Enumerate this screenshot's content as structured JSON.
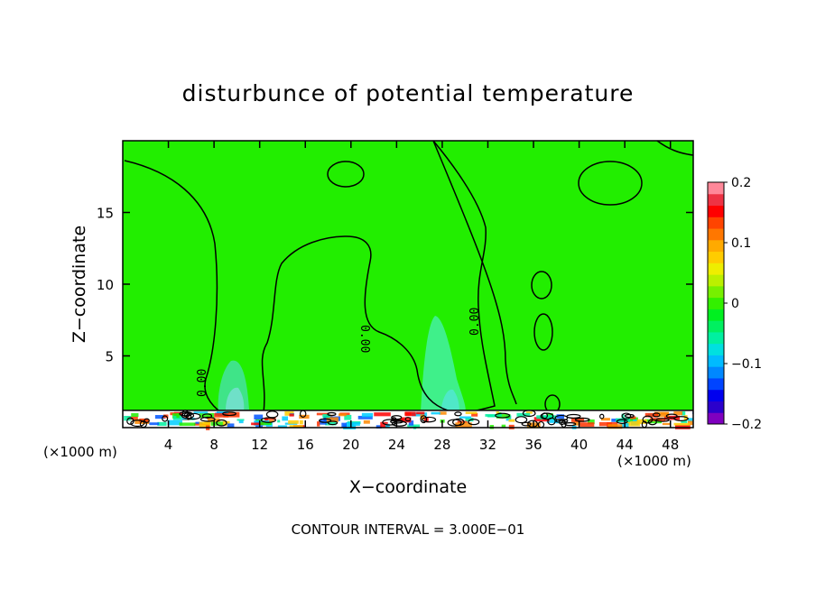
{
  "chart_data": {
    "type": "contour",
    "title": "disturbunce of potential temperature",
    "xlabel": "X−coordinate",
    "ylabel": "Z−coordinate",
    "x_unit_left": "(×1000 m)",
    "x_unit_right": "(×1000 m)",
    "footer": "CONTOUR INTERVAL = 3.000E−01",
    "xlim": [
      0,
      50
    ],
    "ylim": [
      0,
      20
    ],
    "x_ticks": [
      4,
      8,
      12,
      16,
      20,
      24,
      28,
      32,
      36,
      40,
      44,
      48
    ],
    "y_ticks": [
      5,
      10,
      15
    ],
    "contour_interval": 0.3,
    "contour_labels": [
      "0.00",
      "0.00",
      "0.00"
    ],
    "colorbar": {
      "range": [
        -0.2,
        0.2
      ],
      "tick_labels": [
        "0.2",
        "0.1",
        "0",
        "−0.1",
        "−0.2"
      ],
      "tick_values": [
        0.2,
        0.1,
        0,
        -0.1,
        -0.2
      ],
      "colors": [
        "#7f00bf",
        "#2b00cc",
        "#0000ee",
        "#0044ff",
        "#0088ff",
        "#00bbff",
        "#00e0e0",
        "#00f0a0",
        "#00f060",
        "#00f020",
        "#33f000",
        "#77f000",
        "#bbf000",
        "#eeee00",
        "#ffcc00",
        "#ffaa00",
        "#ff7700",
        "#ff4400",
        "#ff0000",
        "#ee3344",
        "#ff8899"
      ]
    },
    "background_value": 0.0,
    "near_zero_patches_x": [
      10,
      28,
      29.5
    ],
    "surface_layer_top_z": 1.2
  }
}
